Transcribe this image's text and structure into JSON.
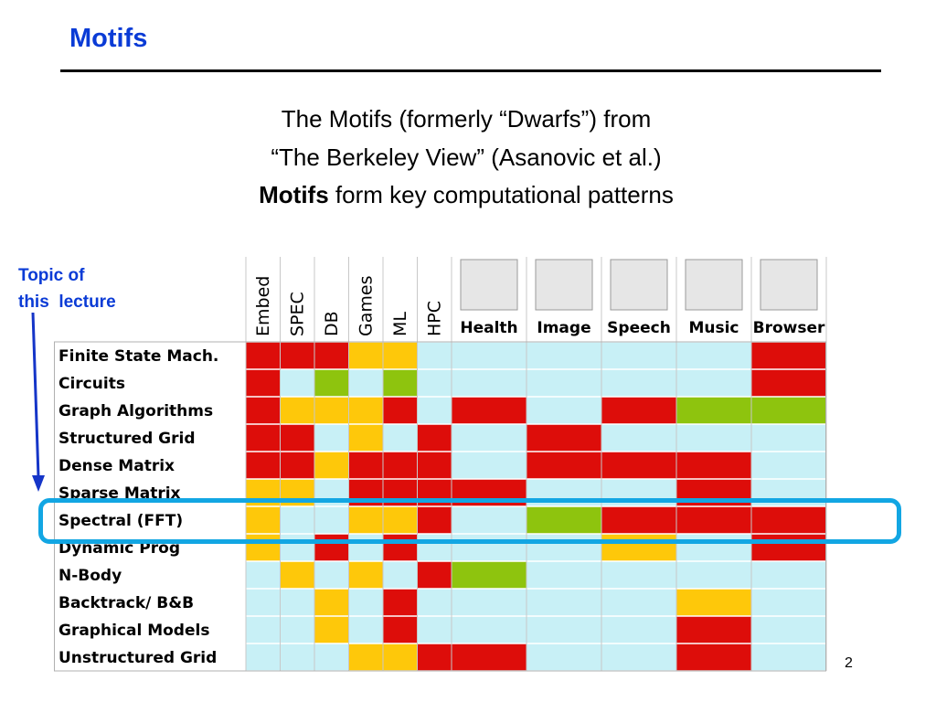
{
  "slide": {
    "title": "Motifs",
    "subtitle_line1": "The Motifs (formerly “Dwarfs”) from",
    "subtitle_line2": "“The Berkeley View” (Asanovic et al.)",
    "subtitle_line3_bold": "Motifs",
    "subtitle_line3_rest": " form key computational patterns",
    "note_line1": "Topic of",
    "note_line2": "this  lecture",
    "page_number": "2"
  },
  "colors": {
    "title_blue": "#0a3bd6",
    "red": "#dd0d0a",
    "orange": "#fec80a",
    "green": "#8ec40e",
    "cyan": "#c8f0f6",
    "highlight": "#12a6e3",
    "arrow": "#1535c8"
  },
  "grid": {
    "vertical_headers": [
      "Embed",
      "SPEC",
      "DB",
      "Games",
      "ML",
      "HPC"
    ],
    "app_headers": [
      "Health",
      "Image",
      "Speech",
      "Music",
      "Browser"
    ],
    "app_pictures": [
      "health-picture",
      "image-picture",
      "speech-picture",
      "music-picture",
      "browser-picture"
    ],
    "rows": [
      {
        "label": "Finite State Mach.",
        "cells": [
          "R",
          "R",
          "R",
          "O",
          "O",
          "C",
          "C",
          "C",
          "C",
          "C",
          "R"
        ]
      },
      {
        "label": "Circuits",
        "cells": [
          "R",
          "C",
          "G",
          "C",
          "G",
          "C",
          "C",
          "C",
          "C",
          "C",
          "R"
        ]
      },
      {
        "label": "Graph Algorithms",
        "cells": [
          "R",
          "O",
          "O",
          "O",
          "R",
          "C",
          "R",
          "C",
          "R",
          "G",
          "G"
        ]
      },
      {
        "label": "Structured Grid",
        "cells": [
          "R",
          "R",
          "C",
          "O",
          "C",
          "R",
          "C",
          "R",
          "C",
          "C",
          "C"
        ]
      },
      {
        "label": "Dense Matrix",
        "cells": [
          "R",
          "R",
          "O",
          "R",
          "R",
          "R",
          "C",
          "R",
          "R",
          "R",
          "C"
        ]
      },
      {
        "label": "Sparse Matrix",
        "cells": [
          "O",
          "O",
          "C",
          "R",
          "R",
          "R",
          "R",
          "C",
          "C",
          "R",
          "C"
        ]
      },
      {
        "label": "Spectral (FFT)",
        "cells": [
          "O",
          "C",
          "C",
          "O",
          "O",
          "R",
          "C",
          "G",
          "R",
          "R",
          "R"
        ]
      },
      {
        "label": "Dynamic Prog",
        "cells": [
          "O",
          "C",
          "R",
          "C",
          "R",
          "C",
          "C",
          "C",
          "O",
          "C",
          "R"
        ]
      },
      {
        "label": "N-Body",
        "cells": [
          "C",
          "O",
          "C",
          "O",
          "C",
          "R",
          "G",
          "C",
          "C",
          "C",
          "C"
        ]
      },
      {
        "label": "Backtrack/ B&B",
        "cells": [
          "C",
          "C",
          "O",
          "C",
          "R",
          "C",
          "C",
          "C",
          "C",
          "O",
          "C"
        ]
      },
      {
        "label": "Graphical Models",
        "cells": [
          "C",
          "C",
          "O",
          "C",
          "R",
          "C",
          "C",
          "C",
          "C",
          "R",
          "C"
        ]
      },
      {
        "label": "Unstructured Grid",
        "cells": [
          "C",
          "C",
          "C",
          "O",
          "O",
          "R",
          "R",
          "C",
          "C",
          "R",
          "C"
        ]
      }
    ],
    "highlighted_row": "Spectral (FFT)"
  }
}
